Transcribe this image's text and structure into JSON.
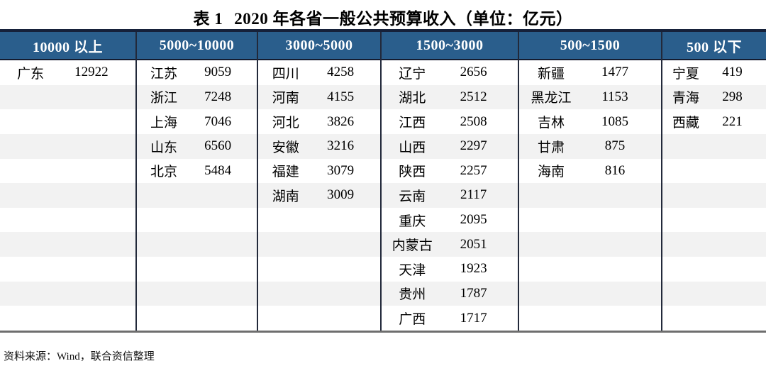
{
  "title": {
    "label": "表 1",
    "text": "2020 年各省一般公共预算收入（单位：亿元）"
  },
  "source": "资料来源：Wind，联合资信整理",
  "colors": {
    "header_bg": "#2a5e8c",
    "header_text": "#ffffff",
    "stripe": "#f2f2f2",
    "top_border": "#16213a",
    "separator": "#22293a",
    "bottom_border": "#6e6e6e"
  },
  "table": {
    "num_rows": 11,
    "groups": [
      {
        "header": "10000 以上",
        "rows": [
          [
            "广东",
            "12922"
          ]
        ]
      },
      {
        "header": "5000~10000",
        "rows": [
          [
            "江苏",
            "9059"
          ],
          [
            "浙江",
            "7248"
          ],
          [
            "上海",
            "7046"
          ],
          [
            "山东",
            "6560"
          ],
          [
            "北京",
            "5484"
          ]
        ]
      },
      {
        "header": "3000~5000",
        "rows": [
          [
            "四川",
            "4258"
          ],
          [
            "河南",
            "4155"
          ],
          [
            "河北",
            "3826"
          ],
          [
            "安徽",
            "3216"
          ],
          [
            "福建",
            "3079"
          ],
          [
            "湖南",
            "3009"
          ]
        ]
      },
      {
        "header": "1500~3000",
        "rows": [
          [
            "辽宁",
            "2656"
          ],
          [
            "湖北",
            "2512"
          ],
          [
            "江西",
            "2508"
          ],
          [
            "山西",
            "2297"
          ],
          [
            "陕西",
            "2257"
          ],
          [
            "云南",
            "2117"
          ],
          [
            "重庆",
            "2095"
          ],
          [
            "内蒙古",
            "2051"
          ],
          [
            "天津",
            "1923"
          ],
          [
            "贵州",
            "1787"
          ],
          [
            "广西",
            "1717"
          ]
        ]
      },
      {
        "header": "500~1500",
        "rows": [
          [
            "新疆",
            "1477"
          ],
          [
            "黑龙江",
            "1153"
          ],
          [
            "吉林",
            "1085"
          ],
          [
            "甘肃",
            "875"
          ],
          [
            "海南",
            "816"
          ]
        ]
      },
      {
        "header": "500 以下",
        "rows": [
          [
            "宁夏",
            "419"
          ],
          [
            "青海",
            "298"
          ],
          [
            "西藏",
            "221"
          ]
        ]
      }
    ]
  }
}
